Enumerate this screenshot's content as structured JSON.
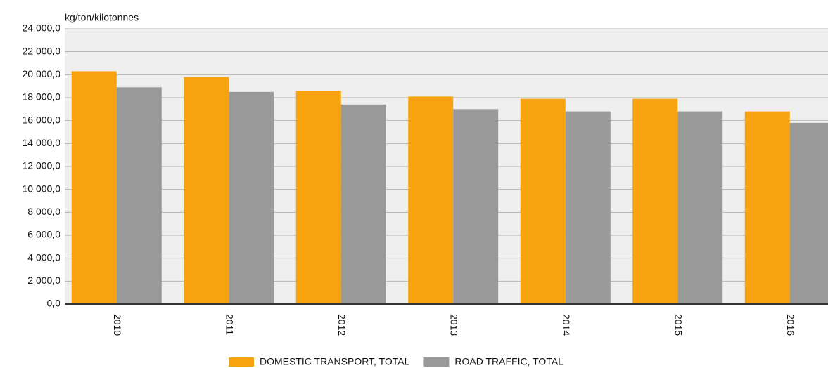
{
  "chart_data": {
    "type": "bar",
    "y_axis_label": "kg/ton/kilotonnes",
    "categories": [
      "2010",
      "2011",
      "2012",
      "2013",
      "2014",
      "2015",
      "2016"
    ],
    "series": [
      {
        "name": "DOMESTIC TRANSPORT, TOTAL",
        "color": "#f7a30f",
        "values": [
          20300,
          19800,
          18600,
          18100,
          17900,
          17900,
          16800
        ]
      },
      {
        "name": "ROAD TRAFFIC, TOTAL",
        "color": "#999999",
        "values": [
          18900,
          18500,
          17400,
          17000,
          16800,
          16800,
          15800
        ]
      }
    ],
    "ylim": [
      0,
      24000
    ],
    "yticks": [
      {
        "value": 0,
        "label": "0,0"
      },
      {
        "value": 2000,
        "label": "2 000,0"
      },
      {
        "value": 4000,
        "label": "4 000,0"
      },
      {
        "value": 6000,
        "label": "6 000,0"
      },
      {
        "value": 8000,
        "label": "8 000,0"
      },
      {
        "value": 10000,
        "label": "10 000,0"
      },
      {
        "value": 12000,
        "label": "12 000,0"
      },
      {
        "value": 14000,
        "label": "14 000,0"
      },
      {
        "value": 16000,
        "label": "16 000,0"
      },
      {
        "value": 18000,
        "label": "18 000,0"
      },
      {
        "value": 20000,
        "label": "20 000,0"
      },
      {
        "value": 22000,
        "label": "22 000,0"
      },
      {
        "value": 24000,
        "label": "24 000,0"
      }
    ],
    "grid": true,
    "legend": "bottom"
  }
}
